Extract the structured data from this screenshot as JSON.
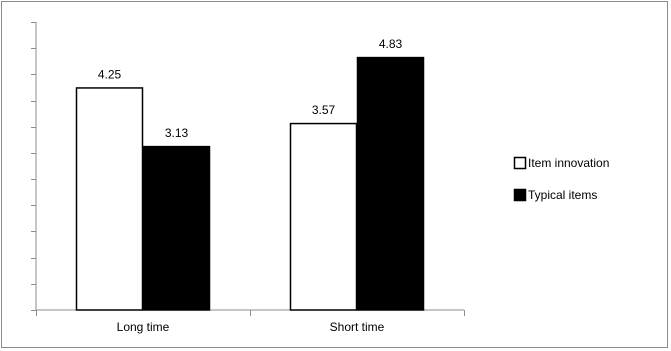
{
  "chart_data": {
    "type": "bar",
    "categories": [
      "Long time",
      "Short time"
    ],
    "series": [
      {
        "name": "Item innovation",
        "values": [
          4.25,
          3.57
        ],
        "color": "#ffffff",
        "stroke": "#000000"
      },
      {
        "name": "Typical items",
        "values": [
          3.13,
          4.83
        ],
        "color": "#000000",
        "stroke": "#000000"
      }
    ],
    "data_labels": [
      "4.25",
      "3.57",
      "3.13",
      "4.83"
    ],
    "ylim": [
      0,
      5.5
    ],
    "y_tick_interval": 0.5,
    "y_tick_labels_shown": false,
    "legend_position": "right",
    "grid": false,
    "title": "",
    "xlabel": "",
    "ylabel": ""
  }
}
